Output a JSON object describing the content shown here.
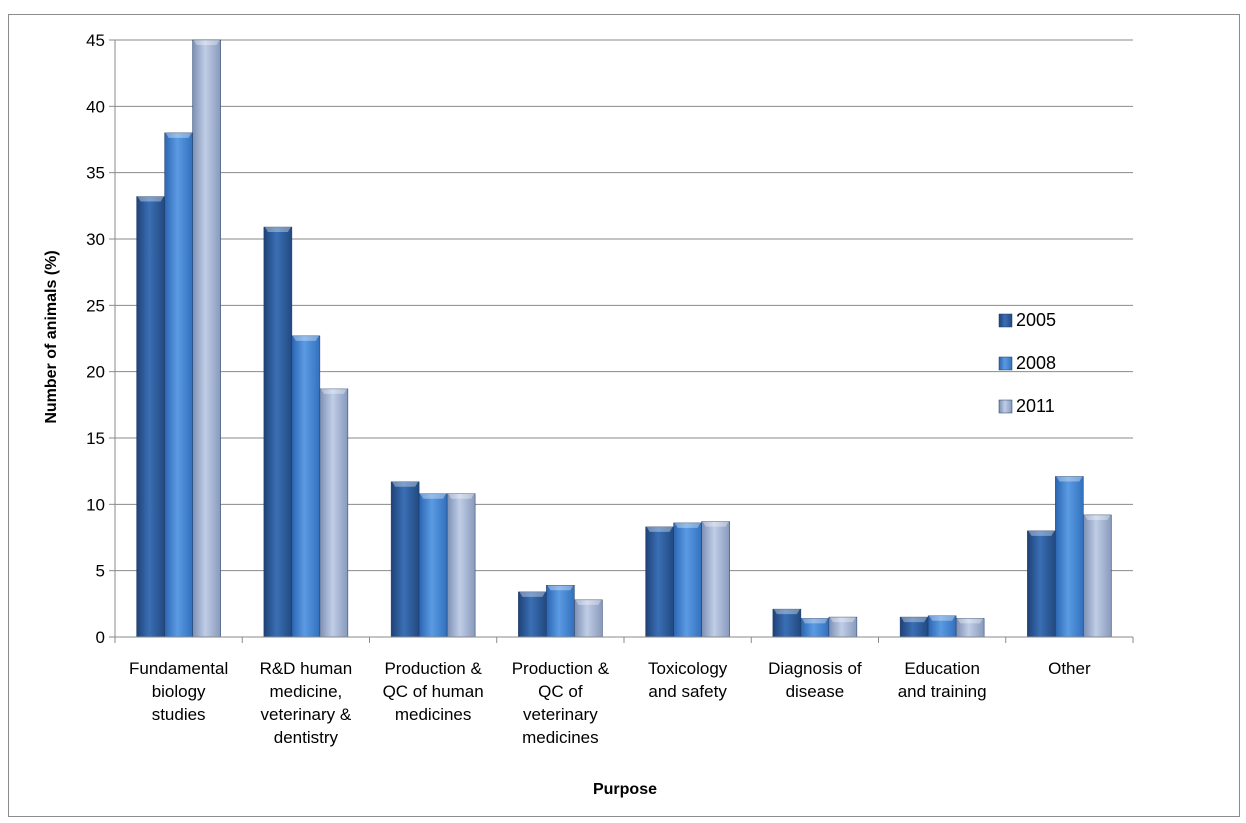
{
  "chart_data": {
    "type": "bar",
    "title": "",
    "xlabel": "Purpose",
    "ylabel": "Number of animals (%)",
    "ylim": [
      0,
      45
    ],
    "yticks": [
      0,
      5,
      10,
      15,
      20,
      25,
      30,
      35,
      40,
      45
    ],
    "grid": true,
    "legend_position": "right",
    "categories": [
      [
        "Fundamental",
        "biology",
        "studies"
      ],
      [
        "R&D human",
        "medicine,",
        "veterinary &",
        "dentistry"
      ],
      [
        "Production &",
        "QC of human",
        "medicines"
      ],
      [
        "Production &",
        "QC of",
        "veterinary",
        "medicines"
      ],
      [
        "Toxicology",
        "and safety"
      ],
      [
        "Diagnosis of",
        "disease"
      ],
      [
        "Education",
        "and training"
      ],
      [
        "Other"
      ]
    ],
    "series": [
      {
        "name": "2005",
        "color": "#2e5d9c",
        "values": [
          33.2,
          30.9,
          11.7,
          3.4,
          8.3,
          2.1,
          1.5,
          8.0
        ]
      },
      {
        "name": "2008",
        "color": "#4a86d0",
        "values": [
          38.0,
          22.7,
          10.8,
          3.9,
          8.6,
          1.4,
          1.6,
          12.1
        ]
      },
      {
        "name": "2011",
        "color": "#a4b6d8",
        "values": [
          45.0,
          18.7,
          10.8,
          2.8,
          8.7,
          1.5,
          1.4,
          9.2
        ]
      }
    ]
  }
}
